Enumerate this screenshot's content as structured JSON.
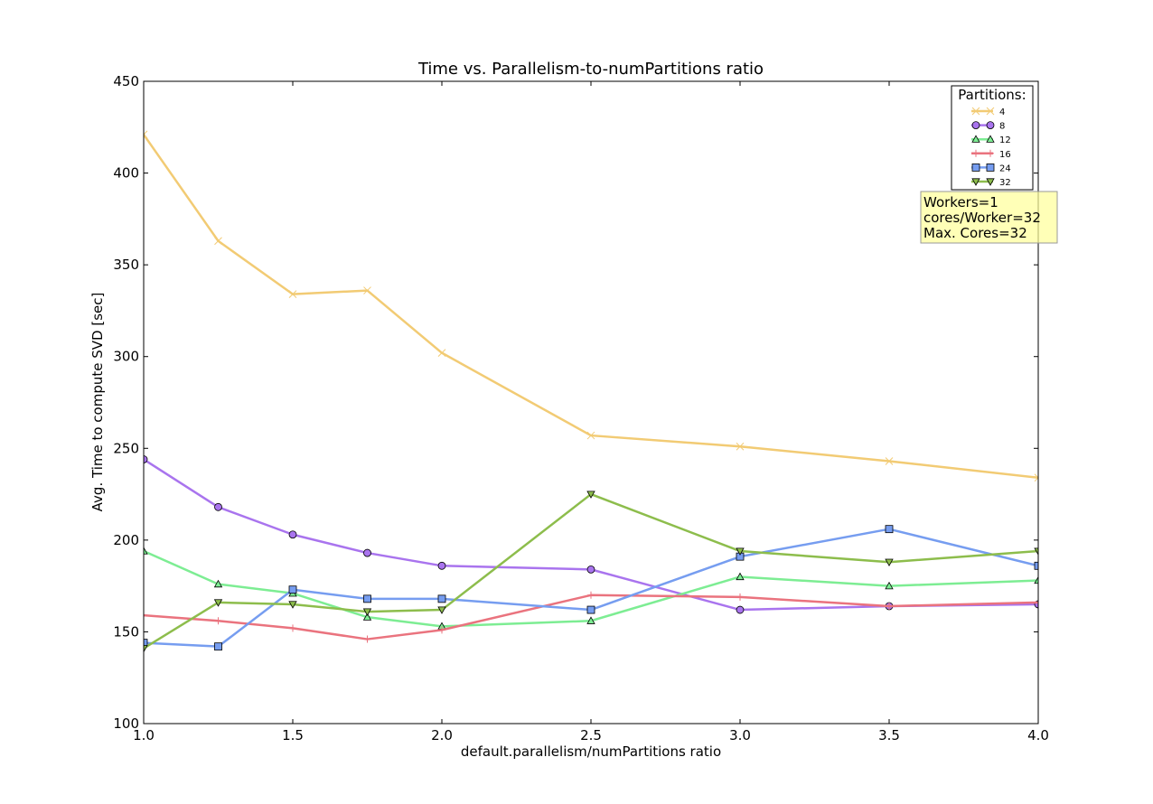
{
  "chart_data": {
    "type": "line",
    "title": "Time vs. Parallelism-to-numPartitions ratio",
    "xlabel": "default.parallelism/numPartitions ratio",
    "ylabel": "Avg. Time to compute SVD [sec]",
    "xlim": [
      1.0,
      4.0
    ],
    "ylim": [
      100,
      450
    ],
    "x_ticks": [
      "1.0",
      "1.5",
      "2.0",
      "2.5",
      "3.0",
      "3.5",
      "4.0"
    ],
    "y_ticks": [
      "100",
      "150",
      "200",
      "250",
      "300",
      "350",
      "400",
      "450"
    ],
    "grid": false,
    "legend_title": "Partitions:",
    "legend_position": "top-right",
    "annotation": {
      "lines": [
        "Workers=1",
        "cores/Worker=32",
        "Max. Cores=32"
      ],
      "background": "#ffff99"
    },
    "series": [
      {
        "name": "4",
        "color": "#f2cb74",
        "marker": "x",
        "x": [
          1.0,
          1.25,
          1.5,
          1.75,
          2.0,
          2.5,
          3.0,
          3.5,
          4.0
        ],
        "y": [
          421,
          363,
          334,
          336,
          302,
          257,
          251,
          243,
          234
        ]
      },
      {
        "name": "8",
        "color": "#a974ee",
        "marker": "circle",
        "x": [
          1.0,
          1.25,
          1.5,
          1.75,
          2.0,
          2.5,
          3.0,
          3.5,
          4.0
        ],
        "y": [
          244,
          218,
          203,
          193,
          186,
          184,
          162,
          164,
          165
        ]
      },
      {
        "name": "12",
        "color": "#7ded93",
        "marker": "triangle-up",
        "x": [
          1.0,
          1.25,
          1.5,
          1.75,
          2.0,
          2.5,
          3.0,
          3.5,
          4.0
        ],
        "y": [
          194,
          176,
          171,
          158,
          153,
          156,
          180,
          175,
          178
        ]
      },
      {
        "name": "16",
        "color": "#ea737e",
        "marker": "plus",
        "x": [
          1.0,
          1.25,
          1.5,
          1.75,
          2.0,
          2.5,
          3.0,
          3.5,
          4.0
        ],
        "y": [
          159,
          156,
          152,
          146,
          151,
          170,
          169,
          164,
          166
        ]
      },
      {
        "name": "24",
        "color": "#769df0",
        "marker": "square",
        "x": [
          1.0,
          1.25,
          1.5,
          1.75,
          2.0,
          2.5,
          3.0,
          3.5,
          4.0
        ],
        "y": [
          144,
          142,
          173,
          168,
          168,
          162,
          191,
          206,
          186
        ]
      },
      {
        "name": "32",
        "color": "#8dbd4c",
        "marker": "triangle-down",
        "x": [
          1.0,
          1.25,
          1.5,
          1.75,
          2.0,
          2.5,
          3.0,
          3.5,
          4.0
        ],
        "y": [
          141,
          166,
          165,
          161,
          162,
          225,
          194,
          188,
          194
        ]
      }
    ]
  }
}
